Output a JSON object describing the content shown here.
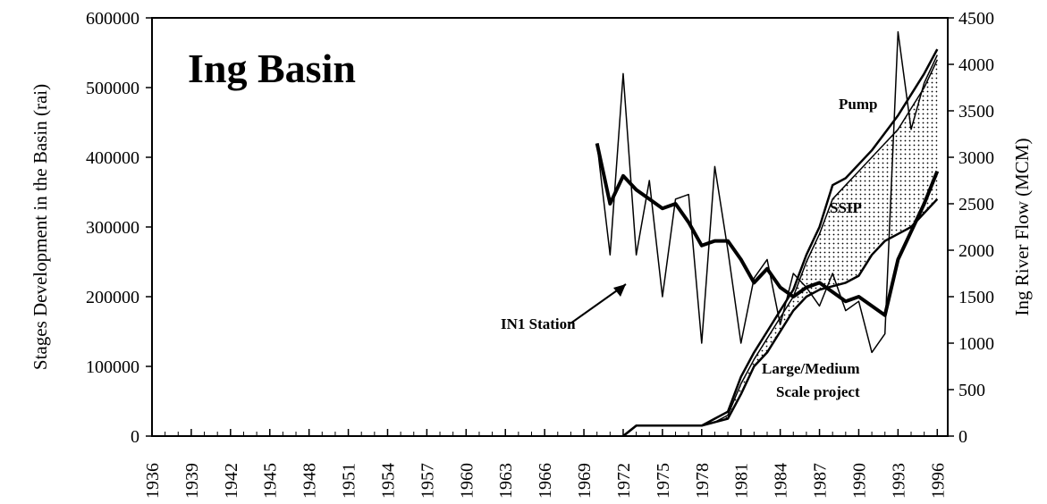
{
  "chart_data": {
    "type": "line",
    "title": "Ing Basin",
    "ylabel": "Stages Development in the Basin (rai)",
    "y2label": "Ing River Flow (MCM)",
    "annotations": [
      "Large/Medium",
      "Scale project"
    ],
    "x": [
      1970,
      1971,
      1972,
      1973,
      1974,
      1975,
      1976,
      1977,
      1978,
      1979,
      1980,
      1981,
      1982,
      1983,
      1984,
      1985,
      1986,
      1987,
      1988,
      1989,
      1990,
      1991,
      1992,
      1993,
      1994,
      1995,
      1996
    ],
    "series": [
      {
        "name": "IN1 Station",
        "color": "#000",
        "axis": "y2",
        "width": 1.5,
        "values": [
          3150,
          1950,
          3900,
          1950,
          2750,
          1500,
          2550,
          2600,
          1000,
          2900,
          2000,
          1000,
          1700,
          1900,
          1200,
          1750,
          1600,
          1400,
          1750,
          1350,
          1450,
          900,
          1100,
          4350,
          3300,
          3800,
          4100
        ]
      },
      {
        "color": "#000",
        "axis": "y2",
        "width": 4,
        "values": [
          3150,
          2500,
          2800,
          2650,
          2550,
          2450,
          2500,
          2300,
          2050,
          2100,
          2100,
          1900,
          1650,
          1800,
          1600,
          1500,
          1600,
          1650,
          1550,
          1450,
          1500,
          1400,
          1300,
          1900,
          2200,
          2500,
          2850
        ]
      },
      {
        "color": "#000",
        "width": 2.5,
        "values": [
          null,
          null,
          0,
          15000,
          15000,
          15000,
          15000,
          15000,
          15000,
          20000,
          25000,
          60000,
          100000,
          120000,
          150000,
          180000,
          200000,
          210000,
          215000,
          220000,
          230000,
          260000,
          280000,
          290000,
          300000,
          320000,
          340000
        ]
      },
      {
        "name": "SSIP",
        "color": "#000",
        "width": 1.5,
        "values": [
          null,
          null,
          0,
          15000,
          15000,
          15000,
          15000,
          15000,
          15000,
          20000,
          30000,
          75000,
          110000,
          140000,
          170000,
          200000,
          250000,
          290000,
          340000,
          360000,
          380000,
          400000,
          420000,
          440000,
          470000,
          500000,
          540000
        ]
      },
      {
        "name": "Pump",
        "color": "#000",
        "width": 2.5,
        "values": [
          null,
          null,
          0,
          15000,
          15000,
          15000,
          15000,
          15000,
          15000,
          25000,
          35000,
          85000,
          120000,
          150000,
          180000,
          210000,
          260000,
          300000,
          360000,
          370000,
          390000,
          410000,
          435000,
          460000,
          490000,
          520000,
          555000
        ]
      }
    ],
    "xlim": [
      1936,
      1996.8
    ],
    "xticks": [
      1936,
      1939,
      1942,
      1945,
      1948,
      1951,
      1954,
      1957,
      1960,
      1963,
      1966,
      1969,
      1972,
      1975,
      1978,
      1981,
      1984,
      1987,
      1990,
      1993,
      1996
    ],
    "ylim": [
      0,
      600000
    ],
    "yticks": [
      0,
      100000,
      200000,
      300000,
      400000,
      500000,
      600000
    ],
    "y2lim": [
      0,
      4500
    ],
    "y2ticks": [
      0,
      500,
      1000,
      1500,
      2000,
      2500,
      3000,
      3500,
      4000,
      4500
    ]
  }
}
